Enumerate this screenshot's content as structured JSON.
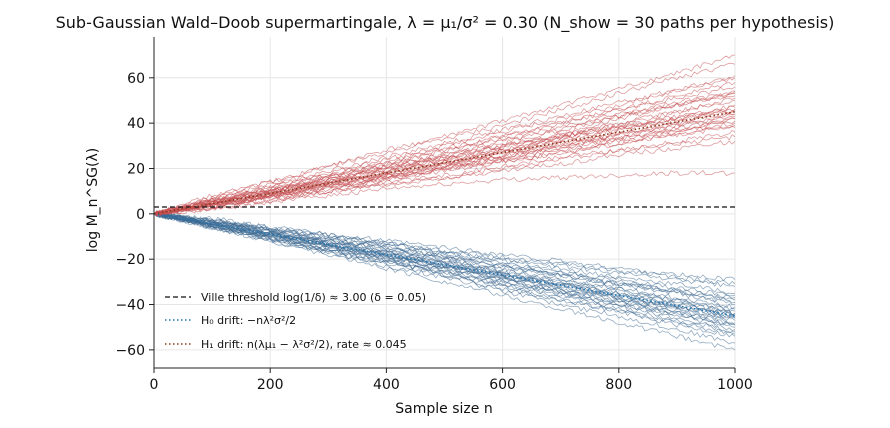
{
  "chart_data": {
    "type": "line",
    "title": "Sub-Gaussian Wald–Doob supermartingale, λ = μ₁/σ² = 0.30  (N_show = 30 paths per hypothesis)",
    "xlabel": "Sample size n",
    "ylabel": "log M_n^SG(λ)",
    "xlim": [
      0,
      1000
    ],
    "ylim": [
      -68,
      78
    ],
    "xticks": [
      0,
      200,
      400,
      600,
      800,
      1000
    ],
    "yticks": [
      -60,
      -40,
      -20,
      0,
      20,
      40,
      60
    ],
    "grid": true,
    "legend_placement": "lower-left",
    "paths_per_hypothesis": 30,
    "threshold": {
      "name": "Ville threshold log(1/δ) ≈ 3.00  (δ = 0.05)",
      "y": 3.0,
      "color": "#111111"
    },
    "h0_drift": {
      "name": "H₀ drift: −nλ²σ²/2",
      "slope": -0.045,
      "color": "#1f77b4"
    },
    "h1_drift": {
      "name": "H₁ drift: n(λμ₁ − λ²σ²/2), rate ≈ 0.045",
      "slope": 0.045,
      "color": "#8b3a1a"
    },
    "h1_paths": {
      "color": "#c44e52",
      "x": [
        0,
        100,
        200,
        300,
        400,
        500,
        600,
        700,
        800,
        900,
        1000
      ],
      "series": [
        [
          0,
          6,
          10,
          15,
          19,
          24,
          29,
          35,
          42,
          48,
          52
        ],
        [
          0,
          4,
          8,
          12,
          15,
          20,
          24,
          28,
          32,
          36,
          40
        ],
        [
          0,
          5,
          10,
          16,
          22,
          28,
          34,
          40,
          46,
          52,
          58
        ],
        [
          0,
          3,
          7,
          10,
          14,
          17,
          21,
          25,
          28,
          32,
          36
        ],
        [
          0,
          7,
          14,
          21,
          27,
          33,
          39,
          46,
          53,
          60,
          66
        ],
        [
          0,
          4,
          9,
          13,
          17,
          21,
          26,
          30,
          35,
          39,
          43
        ],
        [
          0,
          2,
          5,
          8,
          11,
          13,
          15,
          16,
          17,
          18,
          18
        ],
        [
          0,
          5,
          11,
          16,
          21,
          25,
          30,
          34,
          38,
          42,
          46
        ],
        [
          0,
          6,
          12,
          18,
          24,
          30,
          36,
          42,
          48,
          55,
          61
        ],
        [
          0,
          3,
          6,
          10,
          13,
          16,
          20,
          24,
          28,
          31,
          34
        ],
        [
          0,
          4,
          8,
          12,
          16,
          21,
          25,
          30,
          34,
          38,
          42
        ],
        [
          0,
          8,
          14,
          21,
          28,
          34,
          41,
          48,
          55,
          62,
          70
        ],
        [
          0,
          5,
          9,
          13,
          18,
          22,
          27,
          31,
          35,
          40,
          44
        ],
        [
          0,
          3,
          8,
          12,
          17,
          22,
          27,
          32,
          37,
          42,
          48
        ],
        [
          0,
          6,
          11,
          17,
          22,
          28,
          33,
          38,
          44,
          49,
          54
        ],
        [
          0,
          2,
          6,
          10,
          13,
          16,
          19,
          22,
          26,
          29,
          32
        ],
        [
          0,
          5,
          10,
          14,
          19,
          23,
          28,
          33,
          37,
          41,
          45
        ],
        [
          0,
          4,
          9,
          14,
          20,
          26,
          31,
          37,
          43,
          48,
          53
        ],
        [
          0,
          5,
          9,
          14,
          18,
          22,
          26,
          31,
          35,
          39,
          44
        ],
        [
          0,
          4,
          7,
          11,
          15,
          19,
          23,
          27,
          31,
          35,
          39
        ],
        [
          0,
          7,
          13,
          19,
          25,
          31,
          37,
          43,
          49,
          54,
          60
        ],
        [
          0,
          3,
          7,
          11,
          15,
          20,
          24,
          29,
          33,
          37,
          41
        ],
        [
          0,
          6,
          11,
          16,
          21,
          25,
          30,
          34,
          39,
          43,
          47
        ],
        [
          0,
          4,
          8,
          13,
          17,
          21,
          25,
          29,
          33,
          37,
          42
        ],
        [
          0,
          5,
          10,
          15,
          20,
          25,
          30,
          35,
          40,
          45,
          50
        ],
        [
          0,
          3,
          8,
          13,
          18,
          23,
          28,
          34,
          39,
          45,
          51
        ],
        [
          0,
          6,
          12,
          17,
          23,
          29,
          34,
          40,
          46,
          51,
          56
        ],
        [
          0,
          4,
          9,
          14,
          19,
          24,
          28,
          33,
          38,
          42,
          46
        ],
        [
          0,
          5,
          8,
          12,
          16,
          20,
          23,
          27,
          31,
          35,
          38
        ],
        [
          0,
          4,
          10,
          15,
          21,
          26,
          32,
          37,
          43,
          48,
          54
        ]
      ]
    },
    "h0_paths": {
      "color": "#3d6890",
      "x": [
        0,
        100,
        200,
        300,
        400,
        500,
        600,
        700,
        800,
        900,
        1000
      ],
      "series": [
        [
          0,
          -5,
          -10,
          -14,
          -19,
          -23,
          -27,
          -32,
          -37,
          -41,
          -45
        ],
        [
          0,
          -3,
          -7,
          -10,
          -13,
          -17,
          -20,
          -23,
          -26,
          -29,
          -32
        ],
        [
          0,
          -6,
          -11,
          -16,
          -21,
          -26,
          -31,
          -36,
          -42,
          -47,
          -52
        ],
        [
          0,
          -4,
          -8,
          -12,
          -16,
          -20,
          -24,
          -27,
          -31,
          -35,
          -39
        ],
        [
          0,
          -5,
          -9,
          -14,
          -18,
          -23,
          -28,
          -33,
          -38,
          -43,
          -48
        ],
        [
          0,
          -2,
          -6,
          -9,
          -12,
          -15,
          -18,
          -21,
          -24,
          -27,
          -29
        ],
        [
          0,
          -6,
          -12,
          -18,
          -24,
          -30,
          -36,
          -42,
          -48,
          -54,
          -60
        ],
        [
          0,
          -4,
          -9,
          -13,
          -17,
          -21,
          -26,
          -30,
          -34,
          -38,
          -42
        ],
        [
          0,
          -5,
          -10,
          -15,
          -20,
          -25,
          -30,
          -35,
          -40,
          -45,
          -50
        ],
        [
          0,
          -3,
          -6,
          -10,
          -13,
          -17,
          -21,
          -24,
          -28,
          -31,
          -35
        ],
        [
          0,
          -5,
          -9,
          -13,
          -18,
          -22,
          -26,
          -31,
          -35,
          -39,
          -44
        ],
        [
          0,
          -4,
          -8,
          -13,
          -17,
          -22,
          -27,
          -31,
          -36,
          -41,
          -46
        ],
        [
          0,
          -6,
          -11,
          -17,
          -22,
          -27,
          -33,
          -38,
          -43,
          -49,
          -54
        ],
        [
          0,
          -3,
          -7,
          -11,
          -15,
          -19,
          -23,
          -27,
          -31,
          -34,
          -38
        ],
        [
          0,
          -5,
          -10,
          -14,
          -19,
          -24,
          -29,
          -34,
          -39,
          -44,
          -49
        ],
        [
          0,
          -4,
          -8,
          -12,
          -15,
          -19,
          -23,
          -27,
          -31,
          -35,
          -40
        ],
        [
          0,
          -5,
          -11,
          -16,
          -21,
          -26,
          -31,
          -36,
          -41,
          -46,
          -51
        ],
        [
          0,
          -3,
          -6,
          -9,
          -13,
          -16,
          -19,
          -22,
          -25,
          -28,
          -31
        ],
        [
          0,
          -4,
          -9,
          -14,
          -19,
          -24,
          -29,
          -34,
          -38,
          -43,
          -47
        ],
        [
          0,
          -5,
          -10,
          -15,
          -19,
          -24,
          -28,
          -33,
          -37,
          -42,
          -46
        ],
        [
          0,
          -6,
          -12,
          -17,
          -23,
          -28,
          -34,
          -40,
          -45,
          -51,
          -57
        ],
        [
          0,
          -4,
          -7,
          -11,
          -15,
          -19,
          -22,
          -26,
          -30,
          -34,
          -37
        ],
        [
          0,
          -5,
          -9,
          -14,
          -19,
          -23,
          -28,
          -32,
          -37,
          -41,
          -45
        ],
        [
          0,
          -3,
          -8,
          -12,
          -16,
          -20,
          -25,
          -29,
          -33,
          -37,
          -41
        ],
        [
          0,
          -6,
          -11,
          -16,
          -20,
          -25,
          -30,
          -35,
          -40,
          -44,
          -49
        ],
        [
          0,
          -4,
          -8,
          -13,
          -17,
          -21,
          -25,
          -29,
          -33,
          -38,
          -43
        ],
        [
          0,
          -5,
          -10,
          -16,
          -21,
          -27,
          -32,
          -38,
          -43,
          -48,
          -53
        ],
        [
          0,
          -3,
          -7,
          -11,
          -14,
          -18,
          -22,
          -26,
          -29,
          -33,
          -36
        ],
        [
          0,
          -5,
          -10,
          -14,
          -18,
          -23,
          -27,
          -31,
          -36,
          -40,
          -44
        ],
        [
          0,
          -4,
          -9,
          -13,
          -18,
          -22,
          -27,
          -31,
          -35,
          -40,
          -44
        ]
      ]
    }
  }
}
